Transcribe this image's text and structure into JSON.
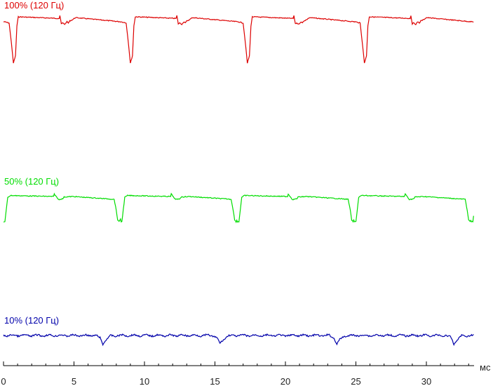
{
  "chart_data": {
    "type": "line",
    "xlabel": "мс",
    "xlim": [
      0,
      33
    ],
    "x_ticks": [
      "0",
      "5",
      "10",
      "15",
      "20",
      "25",
      "30"
    ],
    "x_minor_step": 1,
    "grid": false,
    "legend": "none",
    "period_ms": 8.3,
    "series": [
      {
        "name": "100% (120 Гц)",
        "color": "#dd0000",
        "profile": {
          "x": [
            0.0,
            0.05,
            0.4,
            0.55,
            0.7,
            0.85,
            0.95,
            1.05,
            3.95,
            4.0,
            4.1,
            4.2,
            4.35,
            4.5,
            4.6,
            4.7,
            4.9,
            5.1,
            8.3
          ],
          "y": [
            1.0,
            1.0,
            0.97,
            0.52,
            0.0,
            0.18,
            0.9,
            1.12,
            1.08,
            1.15,
            0.95,
            0.97,
            0.94,
            1.0,
            0.97,
            1.02,
            1.05,
            1.1,
            1.0
          ]
        }
      },
      {
        "name": "50% (120 Гц)",
        "color": "#00dd00",
        "profile": {
          "x": [
            0.0,
            0.1,
            0.3,
            0.5,
            3.55,
            3.6,
            3.9,
            4.2,
            4.3,
            4.9,
            7.85,
            8.0,
            8.1,
            8.2,
            8.3
          ],
          "y": [
            0.0,
            0.0,
            0.97,
            1.04,
            1.0,
            1.1,
            0.88,
            0.91,
            0.98,
            1.0,
            0.89,
            0.45,
            0.07,
            0.0,
            0.12
          ]
        }
      },
      {
        "name": "10% (120 Гц)",
        "color": "#0000aa",
        "profile": {
          "x": [
            0.0,
            6.5,
            6.85,
            7.05,
            7.25,
            7.6,
            8.3
          ],
          "y": [
            1.0,
            1.0,
            0.72,
            0.0,
            0.45,
            0.95,
            1.0
          ]
        }
      }
    ]
  }
}
